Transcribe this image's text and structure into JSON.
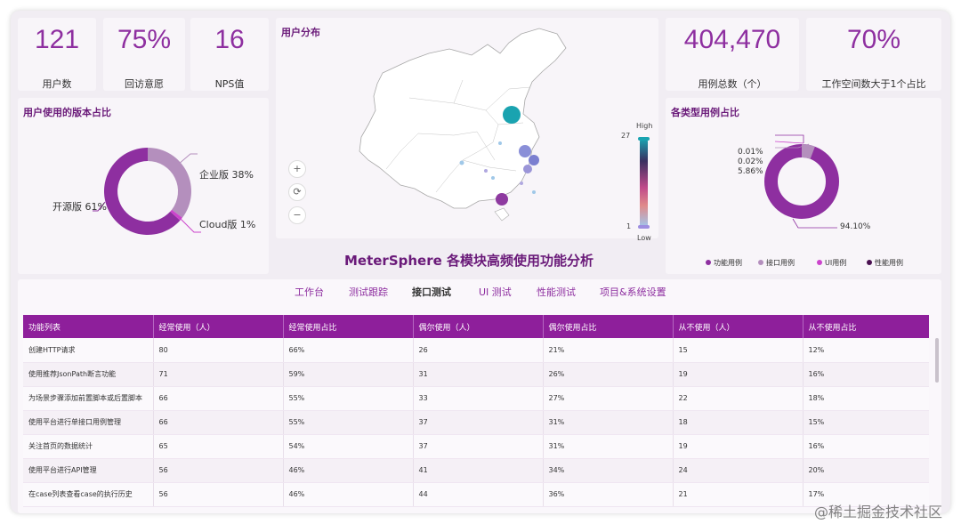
{
  "kpis_left": [
    {
      "value": "121",
      "label": "用户数"
    },
    {
      "value": "75%",
      "label": "回访意愿"
    },
    {
      "value": "16",
      "label": "NPS值"
    }
  ],
  "kpis_right": [
    {
      "value": "404,470",
      "label": "用例总数（个）"
    },
    {
      "value": "70%",
      "label": "工作空间数大于1个占比"
    }
  ],
  "version_card": {
    "title": "用户使用的版本占比",
    "labels": {
      "enterprise": "企业版 38%",
      "opensource": "开源版 61%",
      "cloud": "Cloud版 1%"
    }
  },
  "map_card": {
    "title": "用户分布",
    "scale_high": "High",
    "scale_low": "Low",
    "scale_max": "27",
    "scale_min": "1",
    "zoom_in": "+",
    "reset": "⟳",
    "zoom_out": "−"
  },
  "casetype_card": {
    "title": "各类型用例占比",
    "labels": {
      "a": "0.01%",
      "b": "0.02%",
      "c": "5.86%",
      "d": "94.10%"
    },
    "legend": [
      "功能用例",
      "接口用例",
      "UI用例",
      "性能用例"
    ]
  },
  "colors": {
    "accent": "#8e2fa0",
    "deep": "#6a1a79",
    "light": "#b48fbd",
    "pink": "#cc44cc",
    "dark": "#4a1050"
  },
  "heading": "MeterSphere 各模块高频使用功能分析",
  "tabs": [
    "工作台",
    "测试跟踪",
    "接口测试",
    "UI 测试",
    "性能测试",
    "项目&系统设置"
  ],
  "active_tab": "接口测试",
  "table": {
    "headers": [
      "功能列表",
      "经常使用（人）",
      "经常使用占比",
      "偶尔使用（人）",
      "偶尔使用占比",
      "从不使用（人）",
      "从不使用占比"
    ],
    "rows": [
      [
        "创建HTTP请求",
        "80",
        "66%",
        "26",
        "21%",
        "15",
        "12%"
      ],
      [
        "使用推荐JsonPath断言功能",
        "71",
        "59%",
        "31",
        "26%",
        "19",
        "16%"
      ],
      [
        "为场景步骤添加前置脚本或后置脚本",
        "66",
        "55%",
        "33",
        "27%",
        "22",
        "18%"
      ],
      [
        "使用平台进行单接口用例管理",
        "66",
        "55%",
        "37",
        "31%",
        "18",
        "15%"
      ],
      [
        "关注首页的数据统计",
        "65",
        "54%",
        "37",
        "31%",
        "19",
        "16%"
      ],
      [
        "使用平台进行API管理",
        "56",
        "46%",
        "41",
        "34%",
        "24",
        "20%"
      ],
      [
        "在case列表查看case的执行历史",
        "56",
        "46%",
        "44",
        "36%",
        "21",
        "17%"
      ]
    ]
  },
  "watermark": "@稀土掘金技术社区"
}
